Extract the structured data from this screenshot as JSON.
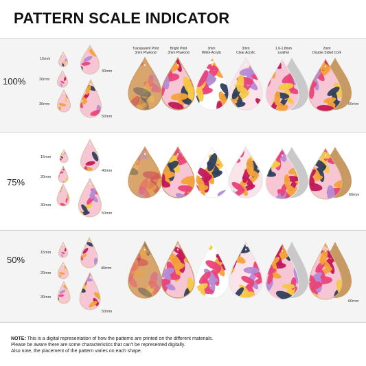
{
  "title": "PATTERN SCALE INDICATOR",
  "materials": [
    {
      "line1": "Transparent Print",
      "line2": "3mm Plywood"
    },
    {
      "line1": "Bright Print",
      "line2": "3mm Plywood"
    },
    {
      "line1": "3mm",
      "line2": "White Acrylic"
    },
    {
      "line1": "3mm",
      "line2": "Clear Acrylic"
    },
    {
      "line1": "1.6-1.8mm",
      "line2": "Leather"
    },
    {
      "line1": "2mm",
      "line2": "Double Sided Cork"
    }
  ],
  "scales": [
    {
      "label": "100%",
      "sizes": {
        "s15": "15mm",
        "s20": "20mm",
        "s30": "30mm",
        "s40": "40mm",
        "s50": "50mm",
        "s60": "60mm"
      }
    },
    {
      "label": "75%",
      "sizes": {
        "s15": "15mm",
        "s20": "20mm",
        "s30": "30mm",
        "s40": "40mm",
        "s50": "50mm",
        "s60": "60mm"
      }
    },
    {
      "label": "50%",
      "sizes": {
        "s15": "15mm",
        "s20": "20mm",
        "s30": "30mm",
        "s40": "40mm",
        "s50": "50mm",
        "s60": "60mm"
      }
    }
  ],
  "note": {
    "prefix": "NOTE:",
    "line1": " This is a digital representation of how the patterns are printed on the different materials.",
    "line2": "Please be aware there are some characteristics that can't be represented digitally.",
    "line3": "Also note, the placement of the pattern varies on each shape."
  },
  "colors": {
    "band": "#f4f4f4",
    "pink": "#e9437a",
    "magenta": "#c2185b",
    "orange": "#f4a23a",
    "yellow": "#f6c945",
    "navy": "#2f3f5c",
    "lilac": "#b58bd6",
    "blush": "#f7c6d4",
    "wood": "#d9a56c",
    "leather": "#c9c9c9",
    "cork": "#c89a63"
  }
}
